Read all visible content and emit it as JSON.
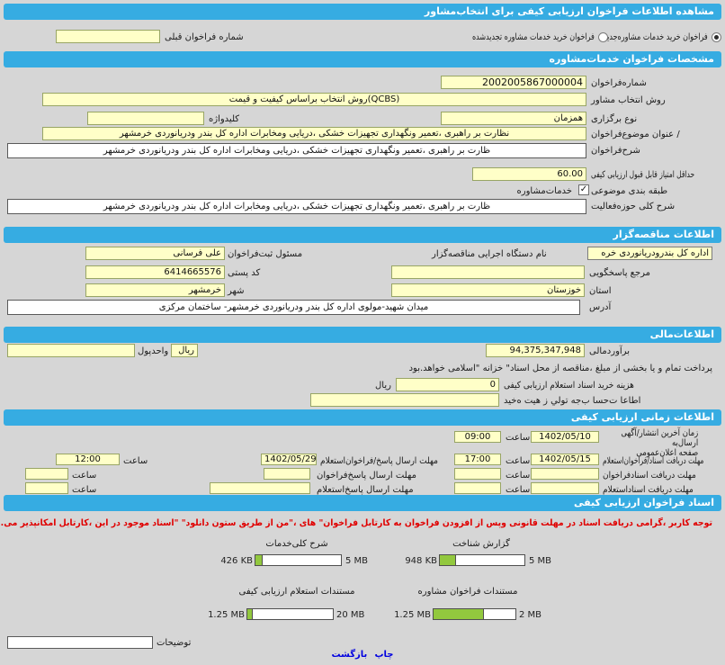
{
  "title": "مشاهده اطلاعات فراخوان ارزیابی  کیفی برای انتخاب‌مشاور",
  "top": {
    "option_new": "فراخوان خرید خدمات مشاوره‌جدید",
    "option_renewed": "فراخوان خرید خدمات مشاوره تجدیدشده",
    "prev_label": "شماره فراخوان قبلی",
    "prev_value": ""
  },
  "specs": {
    "header": "مشخصات فراخوان  خدمات‌مشاوره",
    "number_label": "شماره‌فراخوان",
    "number_value": "2002005867000004",
    "method_label": "روش انتخاب مشاور",
    "method_value": "(QCBS)روش انتخاب براساس کیفیت و قیمت",
    "held_label": "نوع برگزاری",
    "held_value": "همزمان",
    "keyword_label": "کلیدواژه",
    "keyword_value": "",
    "subject_label": "/ عنوان  موضوع‌فراخوان",
    "subject_value": "نظارت بر راهبری ،تعمیر ونگهداری تجهیزات خشکی ،دریایی ومخابرات اداره کل بندر ودریانوردی خرمشهر",
    "desc_label": "شرح‌فراخوان",
    "desc_value": "ظارت بر  راهبری ،تعمیر ونگهداری تجهیزات  خشکی ،دریایی ومخابرات اداره کل بندر  ودریانوردی خرمشهر",
    "minscore_label": "حداقل امتیاز قابل قبول  ارزیابی کیفی",
    "minscore_value": "60.00",
    "category_label": "طبقه بندی موضوعی",
    "category_value": "خدمات‌مشاوره",
    "activity_label": "شرح کلی حوزه‌فعالیت",
    "activity_value": "ظارت بر  راهبری ،تعمیر ونگهداری تجهیزات  خشکی ،دریایی ومخابرات اداره کل بندر  ودریانوردی خرمشهر"
  },
  "tenderer": {
    "header": "اطلاعات مناقصه‌گزار",
    "agency_label": "نام دستگاه اجرایی  مناقصه‌گزار",
    "agency_value": "اداره کل بندرودریانوردی خره",
    "registrar_label": "مسئول ثبت‌فراخوان",
    "registrar_value": "علی فرسانی",
    "reply_label": "مرجع پاسخگویی",
    "reply_value": "",
    "postal_label": "کد پستی",
    "postal_value": "6414665576",
    "province_label": "استان",
    "province_value": "خوزستان",
    "city_label": "شهر",
    "city_value": "خرمشهر",
    "address_label": "آدرس",
    "address_value": "میدان شهید-مولوی اداره کل بندر  ودریانوردی خرمشهر- ساختمان مرکزی"
  },
  "financial": {
    "header": "اطلاعات‌مالی",
    "estimate_label": "برآوردمالی",
    "estimate_value": "94,375,347,948",
    "currency_label": "واحدپول",
    "currency_value": "ریال",
    "currency_extra": "",
    "payment_note": "پرداخت تمام و یا بخشی از  مبلغ  ،مناقصه از محل اسناد\" خزانه \"اسلامی خواهد.بود",
    "doc_cost_label": "هزینه خرید اسناد استعلام  ارزیابی کیفی",
    "doc_cost_value": "0",
    "doc_cost_unit": "ریال",
    "account_label": "اطاعا ت‌حسا ب‌جه تولي ز هيت ه‌خيد",
    "account_value": ""
  },
  "timing": {
    "header": "اطلاعات زمانی ارزیابی کیفی",
    "hour_label": "ساعت",
    "right_rows": [
      {
        "label": "زمان آخرین انتشار/آگهی ارسال‌به",
        "label2": "صفحه اعلان‌عمومی",
        "date": "1402/05/10",
        "time": "09:00"
      },
      {
        "label": "مهلت دریافت اسناد/فراخوان‌استعلام",
        "date": "1402/05/15",
        "time": "17:00"
      },
      {
        "label": "مهلت دریافت اسنادفراخوان",
        "date": "",
        "time": ""
      },
      {
        "label": "مهلت دریافت اسناداستعلام",
        "date": "",
        "time": ""
      }
    ],
    "left_rows": [
      {
        "label": "مهلت ارسال پاسخ/فراخوان‌استعلام",
        "date": "1402/05/29",
        "time": "12:00"
      },
      {
        "label": "مهلت ارسال پاسخ‌فراخوان",
        "date": "",
        "time": ""
      },
      {
        "label": "مهلت ارسال پاسخ‌استعلام",
        "date": "",
        "time": ""
      }
    ]
  },
  "documents": {
    "header": "اسناد فراخوان ارزیابی کیفی",
    "warning": "توجه کاربر ،گرامی دریافت اسناد در مهلت قانونی وپس از افزودن فراخوان به کارتابل فراخوان\" های ،\"من از طریق ستون دانلود\" \"اسناد موجود در این ،کارتابل امکانپذیر می.باشد",
    "uploads": [
      {
        "label": "گزارش شناخت",
        "current": "948 KB",
        "max": "5 MB",
        "percent": 19
      },
      {
        "label": "شرح  کلی‌خدمات",
        "current": "426 KB",
        "max": "5 MB",
        "percent": 8
      },
      {
        "label": "مستندات  فراخوان مشاوره",
        "current": "1.25 MB",
        "max": "2 MB",
        "percent": 62
      },
      {
        "label": "مستندات  استعلام  ارزیابی کیفی",
        "current": "1.25 MB",
        "max": "20 MB",
        "percent": 6
      }
    ]
  },
  "footer": {
    "notes_label": "توضیحات",
    "notes_value": "",
    "print_label": "چاپ",
    "back_label": "بازگشت"
  },
  "colors": {
    "header_blue": "#36ace2",
    "field_yellow": "#ffffc8",
    "warning_red": "#e00000",
    "progress_green": "#92c83e",
    "link_blue": "#0000e0"
  }
}
